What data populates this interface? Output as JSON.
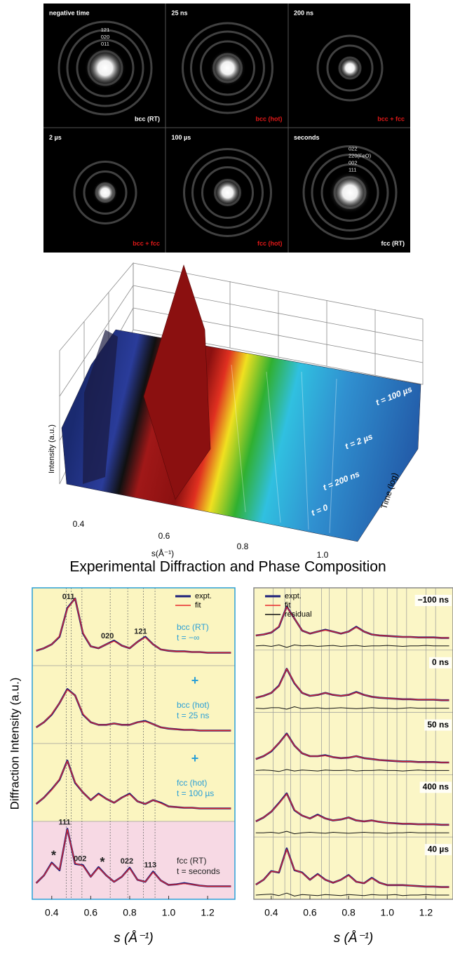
{
  "figure_title": "Experimental Diffraction and Phase Composition",
  "diffraction_images": {
    "panels": [
      {
        "time": "negative time",
        "phase": "bcc (RT)",
        "phase_color": "#ffffff",
        "rings": [
          "121",
          "020",
          "011"
        ]
      },
      {
        "time": "25 ns",
        "phase": "bcc (hot)",
        "phase_color": "#e01818",
        "rings": []
      },
      {
        "time": "200 ns",
        "phase": "bcc + fcc",
        "phase_color": "#e01818",
        "rings": []
      },
      {
        "time": "2 µs",
        "phase": "bcc + fcc",
        "phase_color": "#e01818",
        "rings": []
      },
      {
        "time": "100 µs",
        "phase": "fcc (hot)",
        "phase_color": "#e01818",
        "rings": []
      },
      {
        "time": "seconds",
        "phase": "fcc (RT)",
        "phase_color": "#ffffff",
        "rings": [
          "022",
          "220(FeO)",
          "002",
          "111"
        ]
      }
    ]
  },
  "chart_data": [
    {
      "type": "surface",
      "x_label": "s(Å⁻¹)",
      "z_label": "Intensity (a.u.)",
      "y_label": "Time (log)",
      "xticks": [
        0.4,
        0.6,
        0.8,
        {
          "value": 1,
          "label": "1.0"
        }
      ],
      "annotations": [
        "t = 100 µs",
        "t = 2 µs",
        "t = 200 ns",
        "t = 0"
      ]
    },
    {
      "type": "stacked_line",
      "y_label": "Diffraction Intensity (a.u.)",
      "x_label": "s (Å⁻¹)",
      "xlim": [
        0.3,
        1.34
      ],
      "ylim": [
        0,
        100
      ],
      "xticks": [
        0.4,
        0.6,
        0.8,
        {
          "value": 1,
          "label": "1.0"
        },
        1.2
      ],
      "legend": "upper right",
      "reference_lines": [
        0.5,
        0.7,
        0.87,
        0.475,
        0.555,
        0.79,
        0.93
      ],
      "x": [
        0.32,
        0.36,
        0.4,
        0.44,
        0.48,
        0.52,
        0.56,
        0.6,
        0.64,
        0.68,
        0.72,
        0.76,
        0.8,
        0.84,
        0.88,
        0.92,
        0.96,
        1.0,
        1.04,
        1.08,
        1.12,
        1.16,
        1.2,
        1.24,
        1.28,
        1.32
      ],
      "series": [
        {
          "name": "expt.",
          "color": "#1c1f7a"
        },
        {
          "name": "fit",
          "color": "#e8262a"
        }
      ],
      "panels": [
        {
          "label": "bcc (RT)",
          "sublabel": "t = −∞",
          "label_color": "#2a9fd6",
          "background": "#fbf5c0",
          "peaks": [
            {
              "label": "011",
              "s": 0.5
            },
            {
              "label": "020",
              "s": 0.7
            },
            {
              "label": "121",
              "s": 0.87
            }
          ],
          "values": [
            [
              8,
              12,
              18,
              30,
              75,
              90,
              35,
              15,
              12,
              18,
              24,
              16,
              12,
              22,
              30,
              18,
              10,
              8,
              7,
              7,
              6,
              6,
              5,
              5,
              5,
              5
            ],
            [
              8,
              12,
              18,
              31,
              74,
              90,
              36,
              15,
              12,
              18,
              23,
              16,
              12,
              22,
              29,
              18,
              10,
              8,
              7,
              7,
              6,
              6,
              5,
              5,
              5,
              5
            ]
          ]
        },
        {
          "separator": "+",
          "label": "bcc (hot)",
          "sublabel": "t = 25 ns",
          "label_color": "#2a9fd6",
          "background": "#fbf5c0",
          "peaks": [],
          "values": [
            [
              10,
              18,
              30,
              48,
              70,
              60,
              30,
              18,
              14,
              14,
              16,
              14,
              14,
              18,
              20,
              15,
              10,
              8,
              7,
              6,
              6,
              5,
              5,
              5,
              5,
              5
            ],
            [
              10,
              18,
              31,
              48,
              69,
              60,
              31,
              18,
              14,
              14,
              16,
              14,
              14,
              18,
              19,
              15,
              10,
              8,
              7,
              6,
              6,
              5,
              5,
              5,
              5,
              5
            ]
          ]
        },
        {
          "separator": "+",
          "label": "fcc (hot)",
          "sublabel": "t = 100 µs",
          "label_color": "#2a9fd6",
          "background": "#fbf5c0",
          "peaks": [],
          "values": [
            [
              12,
              22,
              35,
              50,
              80,
              45,
              30,
              18,
              28,
              20,
              14,
              22,
              28,
              16,
              12,
              18,
              14,
              8,
              7,
              6,
              6,
              5,
              5,
              5,
              5,
              5
            ],
            [
              12,
              22,
              34,
              51,
              79,
              46,
              30,
              18,
              27,
              20,
              14,
              22,
              27,
              16,
              12,
              18,
              13,
              8,
              7,
              6,
              6,
              5,
              5,
              5,
              5,
              5
            ]
          ]
        },
        {
          "label": "fcc (RT)",
          "sublabel": "t = seconds",
          "label_color": "#222222",
          "background": "#f7d9e4",
          "peaks": [
            {
              "label": "*",
              "s": 0.41
            },
            {
              "label": "111",
              "s": 0.48
            },
            {
              "label": "002",
              "s": 0.56
            },
            {
              "label": "*",
              "s": 0.66
            },
            {
              "label": "022",
              "s": 0.8
            },
            {
              "label": "113",
              "s": 0.92
            }
          ],
          "values": [
            [
              10,
              22,
              42,
              30,
              95,
              40,
              38,
              20,
              35,
              22,
              12,
              20,
              34,
              15,
              12,
              28,
              14,
              7,
              8,
              10,
              8,
              6,
              5,
              5,
              5,
              5
            ],
            [
              10,
              22,
              41,
              31,
              94,
              41,
              37,
              20,
              34,
              22,
              12,
              20,
              33,
              15,
              12,
              27,
              14,
              7,
              8,
              9,
              8,
              6,
              5,
              5,
              5,
              5
            ]
          ]
        }
      ]
    },
    {
      "type": "stacked_line",
      "x_label": "s (Å⁻¹)",
      "xlim": [
        0.31,
        1.34
      ],
      "ylim": [
        0,
        100
      ],
      "xticks": [
        0.4,
        0.6,
        0.8,
        {
          "value": 1,
          "label": "1.0"
        },
        1.2
      ],
      "legend": "upper left",
      "reference_lines": [
        0.41,
        0.47,
        0.5,
        0.55,
        0.66,
        0.7,
        0.79,
        0.87,
        0.93,
        1.0,
        1.05,
        1.1,
        1.2,
        1.25
      ],
      "x": [
        0.32,
        0.36,
        0.4,
        0.44,
        0.48,
        0.52,
        0.56,
        0.6,
        0.64,
        0.68,
        0.72,
        0.76,
        0.8,
        0.84,
        0.88,
        0.92,
        0.96,
        1.0,
        1.04,
        1.08,
        1.12,
        1.16,
        1.2,
        1.24,
        1.28,
        1.32
      ],
      "series": [
        {
          "name": "expt.",
          "color": "#1c1f7a"
        },
        {
          "name": "fit",
          "color": "#e8262a"
        },
        {
          "name": "residual",
          "color": "#111111",
          "residual": true
        }
      ],
      "panels": [
        {
          "label": "−100 ns",
          "background": "#fbf6c6",
          "values": [
            [
              10,
              12,
              16,
              28,
              70,
              45,
              20,
              14,
              18,
              22,
              18,
              14,
              18,
              28,
              18,
              12,
              10,
              9,
              8,
              7,
              7,
              6,
              6,
              6,
              5,
              5
            ],
            [
              10,
              12,
              16,
              29,
              69,
              45,
              20,
              14,
              18,
              21,
              18,
              14,
              18,
              27,
              18,
              12,
              10,
              9,
              8,
              7,
              7,
              6,
              6,
              6,
              5,
              5
            ],
            [
              0,
              1,
              -1,
              2,
              -3,
              2,
              0,
              1,
              -1,
              0,
              1,
              -1,
              0,
              1,
              -1,
              0,
              0,
              1,
              0,
              -1,
              0,
              0,
              1,
              0,
              0,
              0
            ]
          ]
        },
        {
          "label": "0 ns",
          "background": "#fbf6c6",
          "values": [
            [
              10,
              14,
              20,
              35,
              70,
              40,
              20,
              14,
              16,
              20,
              16,
              14,
              16,
              22,
              16,
              12,
              10,
              9,
              8,
              7,
              7,
              6,
              6,
              6,
              5,
              5
            ],
            [
              10,
              14,
              20,
              34,
              70,
              41,
              20,
              14,
              16,
              20,
              16,
              14,
              16,
              21,
              16,
              12,
              10,
              9,
              8,
              7,
              7,
              6,
              6,
              6,
              5,
              5
            ],
            [
              0,
              -1,
              1,
              1,
              -2,
              3,
              -1,
              0,
              1,
              -1,
              0,
              1,
              0,
              -1,
              0,
              1,
              0,
              0,
              -1,
              0,
              1,
              0,
              0,
              0,
              0,
              0
            ]
          ]
        },
        {
          "label": "50 ns",
          "background": "#fbf6c6",
          "values": [
            [
              12,
              18,
              28,
              45,
              65,
              40,
              24,
              18,
              18,
              20,
              16,
              14,
              15,
              18,
              14,
              12,
              10,
              9,
              8,
              7,
              7,
              6,
              6,
              6,
              5,
              5
            ],
            [
              12,
              18,
              29,
              45,
              64,
              40,
              24,
              18,
              18,
              19,
              16,
              14,
              15,
              18,
              14,
              12,
              10,
              9,
              8,
              7,
              7,
              6,
              6,
              6,
              5,
              5
            ],
            [
              0,
              1,
              0,
              -2,
              2,
              -1,
              1,
              0,
              -1,
              1,
              0,
              0,
              1,
              -1,
              0,
              0,
              1,
              0,
              0,
              -1,
              0,
              1,
              0,
              0,
              0,
              0
            ]
          ]
        },
        {
          "label": "400 ns",
          "background": "#fbf6c6",
          "values": [
            [
              12,
              20,
              32,
              50,
              70,
              35,
              24,
              18,
              26,
              18,
              14,
              16,
              20,
              14,
              12,
              14,
              11,
              9,
              8,
              7,
              7,
              6,
              6,
              6,
              5,
              5
            ],
            [
              12,
              20,
              32,
              49,
              69,
              36,
              24,
              18,
              25,
              18,
              14,
              16,
              20,
              14,
              12,
              14,
              11,
              9,
              8,
              7,
              7,
              6,
              6,
              6,
              5,
              5
            ],
            [
              0,
              0,
              1,
              -1,
              3,
              -2,
              0,
              1,
              0,
              -1,
              1,
              0,
              -1,
              0,
              1,
              0,
              0,
              -1,
              0,
              0,
              1,
              0,
              0,
              0,
              0,
              0
            ]
          ]
        },
        {
          "label": "40 µs",
          "background": "#fbf6c6",
          "values": [
            [
              10,
              20,
              38,
              35,
              85,
              40,
              35,
              20,
              32,
              20,
              14,
              20,
              30,
              16,
              13,
              24,
              14,
              9,
              9,
              9,
              8,
              7,
              6,
              6,
              5,
              5
            ],
            [
              10,
              20,
              37,
              36,
              83,
              41,
              34,
              20,
              31,
              20,
              14,
              20,
              29,
              16,
              13,
              23,
              14,
              9,
              9,
              9,
              8,
              7,
              6,
              6,
              5,
              5
            ],
            [
              0,
              1,
              2,
              -1,
              4,
              -2,
              1,
              0,
              -1,
              1,
              0,
              -1,
              1,
              0,
              -1,
              1,
              0,
              0,
              1,
              -1,
              0,
              0,
              1,
              0,
              0,
              0
            ]
          ]
        }
      ]
    }
  ]
}
